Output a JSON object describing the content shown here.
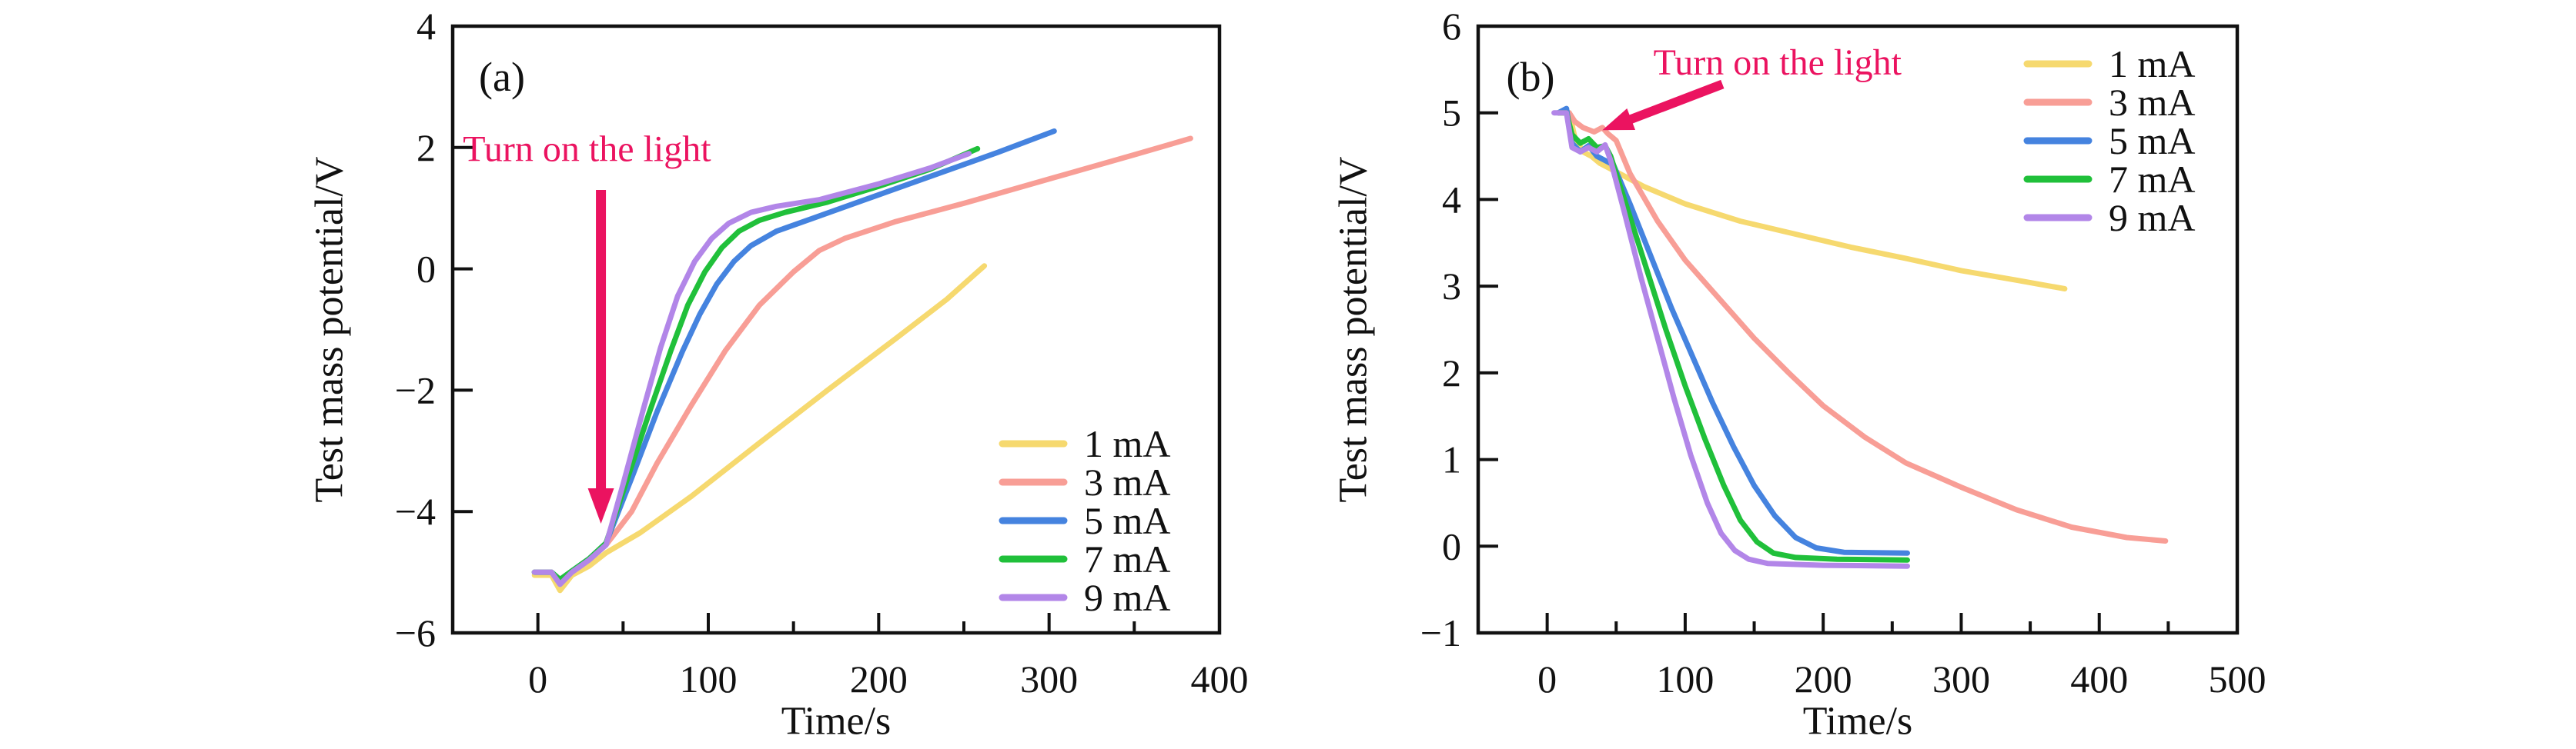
{
  "figure": {
    "background": "#ffffff",
    "axis_color": "#111111",
    "annotation_color": "#EB1360",
    "xlabel": "Time/s",
    "ylabel": "Test mass potential/V",
    "annotation_text": "Turn on the light"
  },
  "chart_data": [
    {
      "type": "line",
      "panel_label": "(a)",
      "xlabel": "Time/s",
      "ylabel": "Test mass potential/V",
      "xlim": [
        -50,
        400
      ],
      "ylim": [
        -6,
        4
      ],
      "xticks_major": [
        0,
        100,
        200,
        300,
        400
      ],
      "xticks_minor": [
        50,
        150,
        250,
        350
      ],
      "yticks": [
        -6,
        -4,
        -2,
        0,
        2,
        4
      ],
      "grid": false,
      "legend_position": "bottom-right",
      "annotation": {
        "text": "Turn on the light",
        "color": "#EB1360",
        "text_x": -44,
        "text_y": 1.97,
        "arrow_from": [
          37,
          1.3
        ],
        "arrow_to": [
          37,
          -4.2
        ]
      },
      "series": [
        {
          "name": "1 mA",
          "color": "#F6D96F",
          "points": [
            [
              -2,
              -5.05
            ],
            [
              8,
              -5.05
            ],
            [
              13,
              -5.3
            ],
            [
              20,
              -5.05
            ],
            [
              30,
              -4.9
            ],
            [
              40,
              -4.68
            ],
            [
              60,
              -4.35
            ],
            [
              90,
              -3.75
            ],
            [
              130,
              -2.87
            ],
            [
              170,
              -2.0
            ],
            [
              210,
              -1.15
            ],
            [
              240,
              -0.5
            ],
            [
              262,
              0.05
            ]
          ]
        },
        {
          "name": "3 mA",
          "color": "#F89E96",
          "points": [
            [
              -2,
              -5.0
            ],
            [
              8,
              -5.0
            ],
            [
              13,
              -5.15
            ],
            [
              20,
              -5.0
            ],
            [
              30,
              -4.8
            ],
            [
              40,
              -4.55
            ],
            [
              55,
              -4.0
            ],
            [
              70,
              -3.2
            ],
            [
              90,
              -2.25
            ],
            [
              110,
              -1.35
            ],
            [
              130,
              -0.6
            ],
            [
              150,
              -0.05
            ],
            [
              165,
              0.3
            ],
            [
              180,
              0.5
            ],
            [
              210,
              0.78
            ],
            [
              250,
              1.08
            ],
            [
              300,
              1.48
            ],
            [
              350,
              1.88
            ],
            [
              383,
              2.15
            ]
          ]
        },
        {
          "name": "5 mA",
          "color": "#4583DF",
          "points": [
            [
              -2,
              -5.0
            ],
            [
              8,
              -5.0
            ],
            [
              13,
              -5.12
            ],
            [
              20,
              -4.98
            ],
            [
              30,
              -4.78
            ],
            [
              40,
              -4.52
            ],
            [
              55,
              -3.45
            ],
            [
              70,
              -2.35
            ],
            [
              85,
              -1.35
            ],
            [
              95,
              -0.75
            ],
            [
              105,
              -0.25
            ],
            [
              115,
              0.12
            ],
            [
              125,
              0.38
            ],
            [
              140,
              0.62
            ],
            [
              160,
              0.82
            ],
            [
              190,
              1.12
            ],
            [
              230,
              1.52
            ],
            [
              270,
              1.92
            ],
            [
              303,
              2.27
            ]
          ]
        },
        {
          "name": "7 mA",
          "color": "#20C03A",
          "points": [
            [
              -2,
              -5.0
            ],
            [
              8,
              -5.0
            ],
            [
              13,
              -5.12
            ],
            [
              20,
              -4.98
            ],
            [
              30,
              -4.78
            ],
            [
              40,
              -4.52
            ],
            [
              52,
              -3.5
            ],
            [
              65,
              -2.4
            ],
            [
              78,
              -1.35
            ],
            [
              88,
              -0.6
            ],
            [
              98,
              -0.05
            ],
            [
              108,
              0.35
            ],
            [
              118,
              0.62
            ],
            [
              130,
              0.8
            ],
            [
              145,
              0.93
            ],
            [
              170,
              1.1
            ],
            [
              200,
              1.36
            ],
            [
              230,
              1.64
            ],
            [
              258,
              1.98
            ]
          ]
        },
        {
          "name": "9 mA",
          "color": "#B286E8",
          "points": [
            [
              -2,
              -5.0
            ],
            [
              8,
              -5.0
            ],
            [
              13,
              -5.2
            ],
            [
              20,
              -5.0
            ],
            [
              30,
              -4.8
            ],
            [
              40,
              -4.55
            ],
            [
              50,
              -3.55
            ],
            [
              62,
              -2.3
            ],
            [
              72,
              -1.3
            ],
            [
              82,
              -0.45
            ],
            [
              92,
              0.12
            ],
            [
              102,
              0.5
            ],
            [
              112,
              0.75
            ],
            [
              125,
              0.93
            ],
            [
              140,
              1.03
            ],
            [
              165,
              1.14
            ],
            [
              200,
              1.4
            ],
            [
              230,
              1.66
            ],
            [
              253,
              1.9
            ]
          ]
        }
      ]
    },
    {
      "type": "line",
      "panel_label": "(b)",
      "xlabel": "Time/s",
      "ylabel": "Test mass potential/V",
      "xlim": [
        -50,
        500
      ],
      "ylim": [
        -1,
        6
      ],
      "xticks_major": [
        0,
        100,
        200,
        300,
        400,
        500
      ],
      "xticks_minor": [
        50,
        150,
        250,
        350,
        450
      ],
      "yticks": [
        -1,
        0,
        1,
        2,
        3,
        4,
        5,
        6
      ],
      "grid": false,
      "legend_position": "top-right",
      "annotation": {
        "text": "Turn on the light",
        "color": "#EB1360",
        "text_x": 77,
        "text_y": 5.58,
        "arrow_from": [
          127,
          5.33
        ],
        "arrow_to": [
          40,
          4.8
        ]
      },
      "series": [
        {
          "name": "1 mA",
          "color": "#F6D96F",
          "points": [
            [
              8,
              5.0
            ],
            [
              16,
              5.0
            ],
            [
              20,
              4.72
            ],
            [
              26,
              4.55
            ],
            [
              32,
              4.5
            ],
            [
              38,
              4.42
            ],
            [
              50,
              4.32
            ],
            [
              70,
              4.15
            ],
            [
              100,
              3.95
            ],
            [
              140,
              3.75
            ],
            [
              180,
              3.6
            ],
            [
              220,
              3.45
            ],
            [
              260,
              3.32
            ],
            [
              300,
              3.18
            ],
            [
              340,
              3.07
            ],
            [
              375,
              2.97
            ]
          ]
        },
        {
          "name": "3 mA",
          "color": "#F89E96",
          "points": [
            [
              8,
              5.0
            ],
            [
              16,
              5.0
            ],
            [
              20,
              4.9
            ],
            [
              26,
              4.83
            ],
            [
              34,
              4.78
            ],
            [
              40,
              4.83
            ],
            [
              44,
              4.76
            ],
            [
              50,
              4.68
            ],
            [
              60,
              4.3
            ],
            [
              80,
              3.75
            ],
            [
              100,
              3.3
            ],
            [
              125,
              2.85
            ],
            [
              150,
              2.4
            ],
            [
              175,
              2.0
            ],
            [
              200,
              1.62
            ],
            [
              230,
              1.26
            ],
            [
              260,
              0.96
            ],
            [
              300,
              0.68
            ],
            [
              340,
              0.42
            ],
            [
              380,
              0.22
            ],
            [
              420,
              0.1
            ],
            [
              448,
              0.06
            ]
          ]
        },
        {
          "name": "5 mA",
          "color": "#4583DF",
          "points": [
            [
              8,
              5.0
            ],
            [
              14,
              5.05
            ],
            [
              18,
              4.65
            ],
            [
              24,
              4.55
            ],
            [
              30,
              4.62
            ],
            [
              36,
              4.5
            ],
            [
              42,
              4.45
            ],
            [
              48,
              4.4
            ],
            [
              60,
              3.95
            ],
            [
              75,
              3.35
            ],
            [
              90,
              2.75
            ],
            [
              105,
              2.2
            ],
            [
              120,
              1.65
            ],
            [
              135,
              1.15
            ],
            [
              150,
              0.7
            ],
            [
              165,
              0.35
            ],
            [
              180,
              0.1
            ],
            [
              195,
              -0.02
            ],
            [
              215,
              -0.07
            ],
            [
              261,
              -0.08
            ]
          ]
        },
        {
          "name": "7 mA",
          "color": "#20C03A",
          "points": [
            [
              8,
              5.0
            ],
            [
              14,
              5.0
            ],
            [
              18,
              4.75
            ],
            [
              24,
              4.65
            ],
            [
              30,
              4.7
            ],
            [
              36,
              4.6
            ],
            [
              42,
              4.62
            ],
            [
              46,
              4.5
            ],
            [
              58,
              3.9
            ],
            [
              72,
              3.2
            ],
            [
              86,
              2.5
            ],
            [
              100,
              1.85
            ],
            [
              114,
              1.25
            ],
            [
              128,
              0.7
            ],
            [
              140,
              0.3
            ],
            [
              152,
              0.05
            ],
            [
              164,
              -0.08
            ],
            [
              180,
              -0.13
            ],
            [
              210,
              -0.15
            ],
            [
              261,
              -0.16
            ]
          ]
        },
        {
          "name": "9 mA",
          "color": "#B286E8",
          "points": [
            [
              5,
              5.0
            ],
            [
              14,
              5.0
            ],
            [
              18,
              4.6
            ],
            [
              24,
              4.55
            ],
            [
              30,
              4.6
            ],
            [
              36,
              4.55
            ],
            [
              42,
              4.63
            ],
            [
              46,
              4.45
            ],
            [
              56,
              3.85
            ],
            [
              68,
              3.1
            ],
            [
              80,
              2.4
            ],
            [
              92,
              1.7
            ],
            [
              104,
              1.05
            ],
            [
              116,
              0.5
            ],
            [
              126,
              0.15
            ],
            [
              136,
              -0.05
            ],
            [
              146,
              -0.15
            ],
            [
              160,
              -0.2
            ],
            [
              200,
              -0.22
            ],
            [
              261,
              -0.23
            ]
          ]
        }
      ]
    }
  ]
}
